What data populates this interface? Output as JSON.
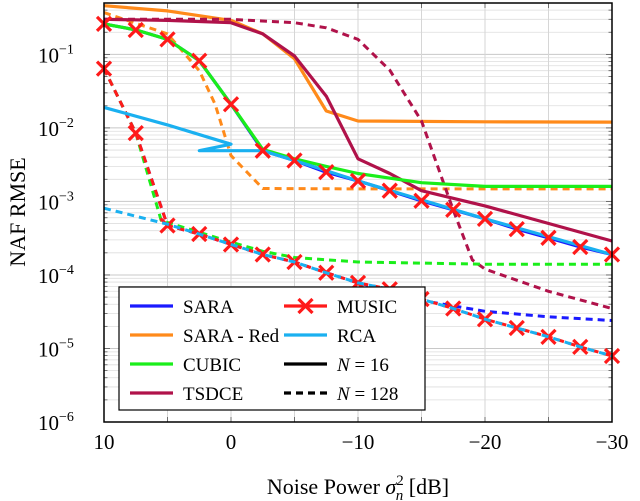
{
  "chart_data": {
    "type": "line",
    "title": "",
    "xlabel": {
      "pre": "Noise Power ",
      "sym": "σ",
      "sub": "n",
      "sup": "2",
      "post": " [dB]"
    },
    "ylabel": "NAF RMSE",
    "xlim": [
      10,
      -30
    ],
    "x_reversed": true,
    "ylim": [
      1e-06,
      0.5
    ],
    "yscale": "log",
    "grid": true,
    "xticks": [
      {
        "v": 10,
        "label": "10"
      },
      {
        "v": 0,
        "label": "0"
      },
      {
        "v": -10,
        "label": "−10"
      },
      {
        "v": -20,
        "label": "−20"
      },
      {
        "v": -30,
        "label": "−30"
      }
    ],
    "yticks": [
      {
        "v": 0.1,
        "base": "10",
        "exp": "−1"
      },
      {
        "v": 0.01,
        "base": "10",
        "exp": "−2"
      },
      {
        "v": 0.001,
        "base": "10",
        "exp": "−3"
      },
      {
        "v": 0.0001,
        "base": "10",
        "exp": "−4"
      },
      {
        "v": 1e-05,
        "base": "10",
        "exp": "−5"
      },
      {
        "v": 1e-06,
        "base": "10",
        "exp": "−6"
      }
    ],
    "legend_position": "bottom-left",
    "legend": [
      {
        "label": "SARA",
        "color": "#1a1aff",
        "style": "solid"
      },
      {
        "label": "MUSIC",
        "color": "#ff1a1a",
        "style": "marker"
      },
      {
        "label": "SARA - Red",
        "color": "#ff8a1a",
        "style": "solid"
      },
      {
        "label": "RCA",
        "color": "#1ab0f0",
        "style": "solid"
      },
      {
        "label": "CUBIC",
        "color": "#1aee1a",
        "style": "solid"
      },
      {
        "label": "N = 16",
        "color": "#000000",
        "style": "solid"
      },
      {
        "label": "TSDCE",
        "color": "#b0124a",
        "style": "solid"
      },
      {
        "label": "N = 128",
        "color": "#000000",
        "style": "dashed"
      }
    ],
    "series": [
      {
        "name": "SARA (N = 16)",
        "color": "#1a1aff",
        "dashed": false,
        "x": [
          10,
          7.5,
          5,
          2.5,
          0,
          -2.5,
          -5,
          -7.5,
          -10,
          -12.5,
          -15,
          -17.5,
          -20,
          -22.5,
          -25,
          -27.5,
          -30
        ],
        "y": [
          0.26,
          0.215,
          0.16,
          0.082,
          0.021,
          0.0049,
          0.0036,
          0.0025,
          0.0019,
          0.0014,
          0.00102,
          0.00077,
          0.00058,
          0.00042,
          0.00032,
          0.00024,
          0.00019
        ]
      },
      {
        "name": "SARA - Red (N = 16)",
        "color": "#ff8a1a",
        "dashed": false,
        "x": [
          10,
          5,
          0,
          -2.5,
          -5,
          -7.5,
          -10,
          -20,
          -30
        ],
        "y": [
          0.46,
          0.39,
          0.29,
          0.19,
          0.087,
          0.017,
          0.0124,
          0.0121,
          0.012
        ]
      },
      {
        "name": "SARA - Red (N = 128)",
        "color": "#ff8a1a",
        "dashed": true,
        "x": [
          10,
          5,
          2.5,
          1.25,
          0,
          -2.5,
          -10,
          -20,
          -30
        ],
        "y": [
          0.37,
          0.19,
          0.06,
          0.021,
          0.0042,
          0.0015,
          0.00148,
          0.00148,
          0.00148
        ]
      },
      {
        "name": "TSDCE (N = 16)",
        "color": "#b0124a",
        "dashed": false,
        "x": [
          10,
          5,
          0,
          -2.5,
          -5,
          -7.5,
          -10,
          -12.5,
          -15,
          -20,
          -30
        ],
        "y": [
          0.3,
          0.29,
          0.27,
          0.19,
          0.095,
          0.027,
          0.0038,
          0.0024,
          0.0014,
          0.00087,
          0.00029
        ]
      },
      {
        "name": "TSDCE (N = 128)",
        "color": "#b0124a",
        "dashed": true,
        "x": [
          10,
          0,
          -5,
          -7.5,
          -10,
          -12.5,
          -15,
          -17.5,
          -19,
          -20,
          -25,
          -30
        ],
        "y": [
          0.3,
          0.3,
          0.27,
          0.23,
          0.16,
          0.061,
          0.0124,
          0.00076,
          0.00016,
          0.00012,
          6e-05,
          3.5e-05
        ]
      },
      {
        "name": "SARA (N = 128)",
        "color": "#1a1aff",
        "dashed": true,
        "x": [
          10,
          7.5,
          5,
          2.5,
          0,
          -2.5,
          -5,
          -7.5,
          -10,
          -12.5,
          -15,
          -20,
          -25,
          -30
        ],
        "y": [
          0.064,
          0.0085,
          0.00047,
          0.00036,
          0.00026,
          0.00019,
          0.00015,
          0.000107,
          7.8e-05,
          6.2e-05,
          4.5e-05,
          3.2e-05,
          2.7e-05,
          2.4e-05
        ]
      },
      {
        "name": "CUBIC (N = 16)",
        "color": "#1aee1a",
        "dashed": false,
        "x": [
          10,
          7.5,
          5,
          2.5,
          0,
          -2.5,
          -5,
          -7.5,
          -10,
          -15,
          -20,
          -30
        ],
        "y": [
          0.26,
          0.215,
          0.16,
          0.082,
          0.021,
          0.0051,
          0.0038,
          0.003,
          0.0024,
          0.0018,
          0.0016,
          0.0016
        ]
      },
      {
        "name": "CUBIC (N = 128)",
        "color": "#1aee1a",
        "dashed": true,
        "x": [
          10,
          7.5,
          5.5,
          2.5,
          0,
          -2.5,
          -5,
          -10,
          -20,
          -30
        ],
        "y": [
          0.064,
          0.0085,
          0.00055,
          0.00038,
          0.00028,
          0.00021,
          0.000173,
          0.00015,
          0.00014,
          0.00014
        ]
      },
      {
        "name": "MUSIC (N = 128)",
        "color": "#ff1a1a",
        "dashed": true,
        "markers": true,
        "x": [
          10,
          7.5,
          5,
          2.5,
          0,
          -2.5,
          -5,
          -7.5,
          -10,
          -12.5,
          -15,
          -17.5,
          -20,
          -22.5,
          -25,
          -27.5,
          -30
        ],
        "y": [
          0.064,
          0.0085,
          0.00047,
          0.00036,
          0.00026,
          0.00019,
          0.00015,
          0.000107,
          7.8e-05,
          6.4e-05,
          4.7e-05,
          3.5e-05,
          2.5e-05,
          1.9e-05,
          1.44e-05,
          1.05e-05,
          7.9e-06
        ]
      },
      {
        "name": "RCA (N = 16)",
        "color": "#1ab0f0",
        "dashed": false,
        "x": [
          10,
          5,
          0,
          2.5,
          -2.5,
          -5,
          -10,
          -20,
          -30
        ],
        "y": [
          0.019,
          0.011,
          0.006,
          0.0049,
          0.0049,
          0.0036,
          0.0019,
          0.00058,
          0.00019
        ]
      },
      {
        "name": "RCA (N = 128)",
        "color": "#1ab0f0",
        "dashed": true,
        "x": [
          10,
          5,
          2.5,
          0,
          -2.5,
          -5,
          -7.5,
          -10,
          -12.5,
          -15,
          -17.5,
          -20,
          -22.5,
          -25,
          -27.5,
          -30
        ],
        "y": [
          0.00081,
          0.00049,
          0.00036,
          0.00026,
          0.00019,
          0.00015,
          0.000107,
          7.8e-05,
          6.4e-05,
          4.7e-05,
          3.5e-05,
          2.5e-05,
          1.9e-05,
          1.44e-05,
          1.05e-05,
          7.9e-06
        ]
      },
      {
        "name": "MUSIC (N = 16)",
        "color": "#ff1a1a",
        "dashed": false,
        "markers": true,
        "line_hidden": true,
        "x": [
          10,
          7.5,
          5,
          2.5,
          0,
          -2.5,
          -5,
          -7.5,
          -10,
          -12.5,
          -15,
          -17.5,
          -20,
          -22.5,
          -25,
          -27.5,
          -30
        ],
        "y": [
          0.26,
          0.215,
          0.16,
          0.082,
          0.021,
          0.0049,
          0.0036,
          0.0025,
          0.0019,
          0.0014,
          0.00102,
          0.00077,
          0.00058,
          0.00042,
          0.00032,
          0.00024,
          0.00019
        ]
      }
    ]
  }
}
